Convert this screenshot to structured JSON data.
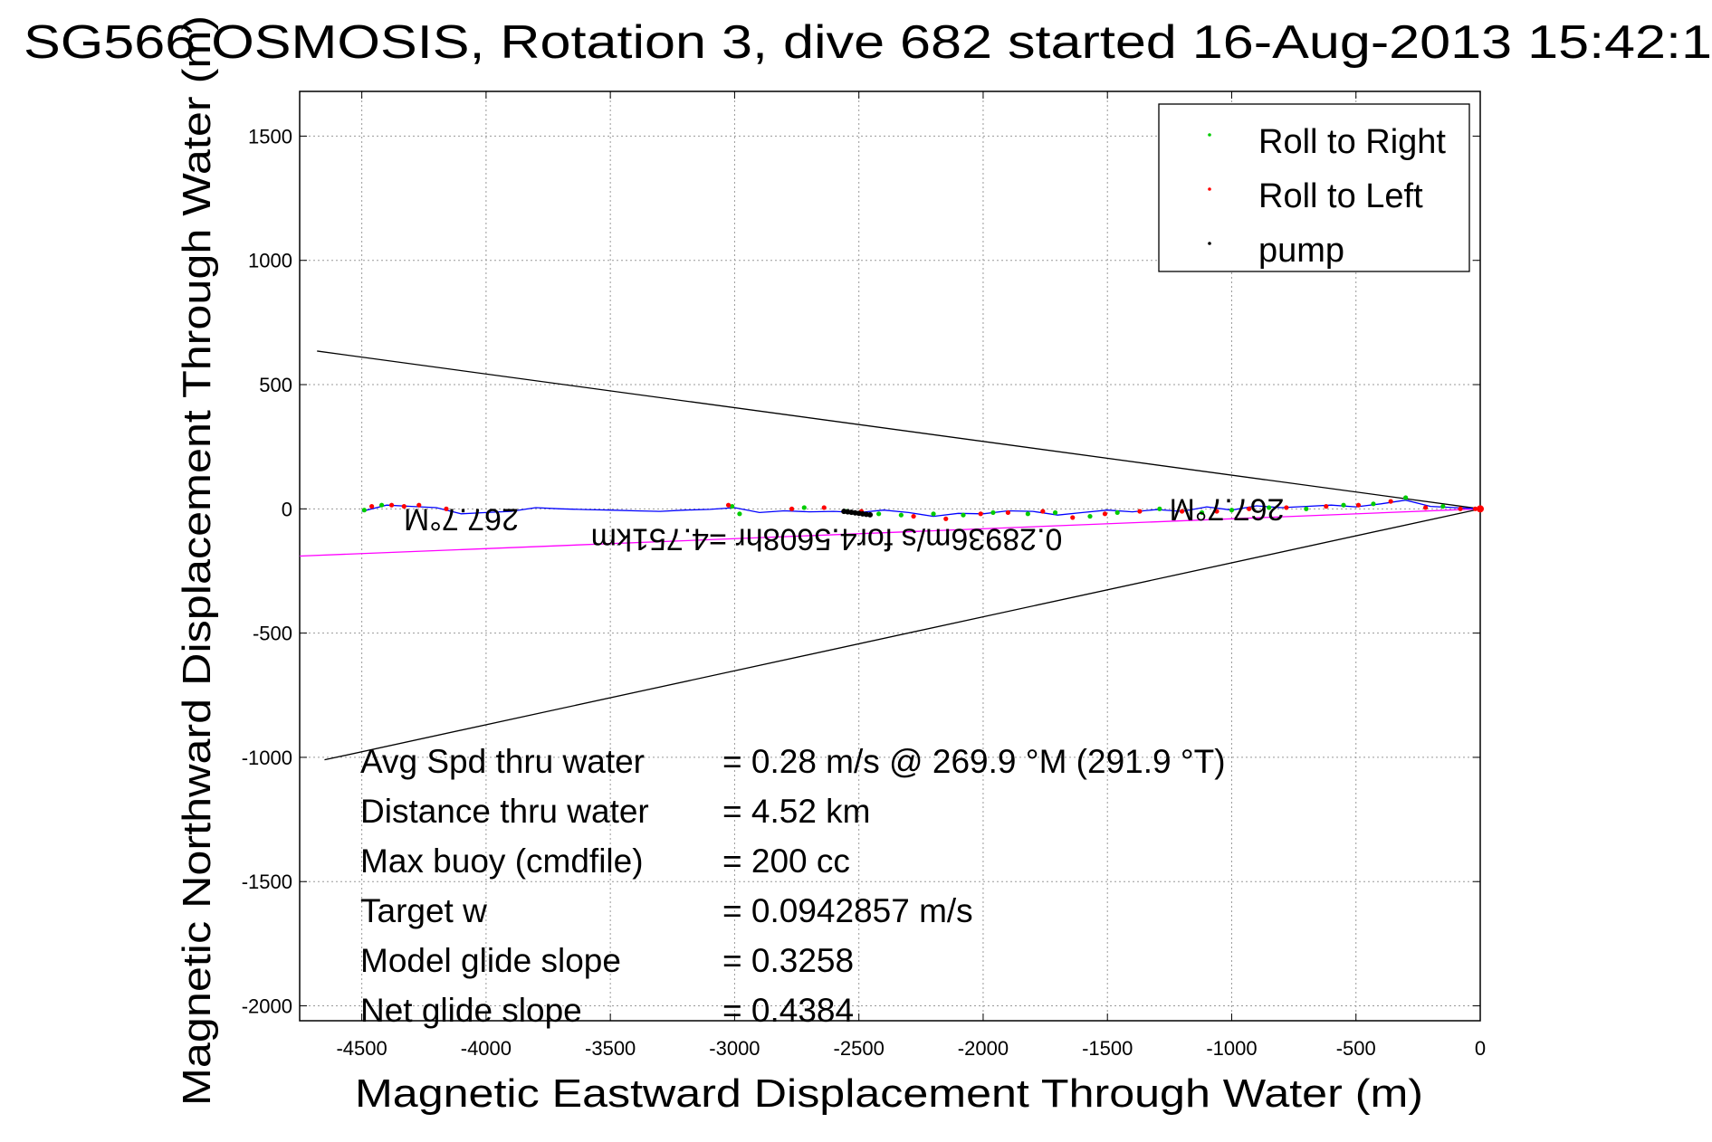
{
  "chart_data": {
    "type": "line",
    "title": "SG566 OSMOSIS, Rotation 3, dive 682 started 16-Aug-2013 15:42:1",
    "xlabel": "Magnetic Eastward Displacement Through Water (m)",
    "ylabel": "Magnetic Northward Displacement Through Water (m)",
    "xlim": [
      -4750,
      0
    ],
    "ylim": [
      -2060,
      1680
    ],
    "xticks": [
      -4500,
      -4000,
      -3500,
      -3000,
      -2500,
      -2000,
      -1500,
      -1000,
      -500,
      0
    ],
    "yticks": [
      1500,
      1000,
      500,
      0,
      -500,
      -1000,
      -1500,
      -2000
    ],
    "xtick_labels": [
      "-4500",
      "-4000",
      "-3500",
      "-3000",
      "-2500",
      "-2000",
      "-1500",
      "-1000",
      "-500",
      "0"
    ],
    "ytick_labels": [
      "1500",
      "1000",
      "500",
      "0",
      "-500",
      "-1000",
      "-1500",
      "-2000"
    ],
    "grid": true,
    "legend_position": "top-right",
    "legend": [
      {
        "label": "Roll to Right",
        "color": "#00cc00"
      },
      {
        "label": "Roll to Left",
        "color": "#ff0000"
      },
      {
        "label": "pump",
        "color": "#000000"
      }
    ],
    "track": {
      "name": "displacement",
      "color": "#0000ff",
      "x": [
        0,
        -100,
        -200,
        -300,
        -400,
        -500,
        -600,
        -700,
        -800,
        -900,
        -1000,
        -1100,
        -1200,
        -1300,
        -1400,
        -1500,
        -1600,
        -1700,
        -1800,
        -1900,
        -2000,
        -2100,
        -2200,
        -2300,
        -2400,
        -2500,
        -2600,
        -2700,
        -2800,
        -2900,
        -3000,
        -3100,
        -3200,
        -3300,
        -3400,
        -3500,
        -3600,
        -3700,
        -3800,
        -3900,
        -4000,
        -4100,
        -4200,
        -4300,
        -4400,
        -4500
      ],
      "y": [
        0,
        5,
        10,
        35,
        20,
        8,
        15,
        10,
        5,
        12,
        -5,
        8,
        -10,
        -3,
        -12,
        -5,
        -15,
        -25,
        -10,
        -8,
        -20,
        -18,
        -30,
        -15,
        -5,
        -15,
        -10,
        -12,
        -8,
        -15,
        5,
        -2,
        -5,
        -10,
        -8,
        -5,
        -3,
        0,
        5,
        -10,
        -15,
        -20,
        5,
        10,
        15,
        -10
      ]
    },
    "roll_right_points": {
      "x": [
        -4490,
        -4420,
        -3010,
        -2980,
        -2720,
        -2550,
        -2420,
        -2330,
        -2200,
        -2080,
        -1960,
        -1820,
        -1710,
        -1570,
        -1460,
        -1290,
        -1120,
        -1000,
        -850,
        -700,
        -550,
        -430,
        -300,
        -150
      ],
      "y": [
        -5,
        15,
        10,
        -20,
        5,
        -10,
        -20,
        -25,
        -20,
        -25,
        -15,
        -20,
        -15,
        -30,
        -15,
        0,
        -15,
        -5,
        5,
        0,
        15,
        20,
        45,
        10
      ]
    },
    "roll_left_points": {
      "x": [
        -4460,
        -4380,
        -4330,
        -4270,
        -4160,
        -3025,
        -2770,
        -2640,
        -2490,
        -2280,
        -2150,
        -2010,
        -1900,
        -1760,
        -1640,
        -1510,
        -1370,
        -1200,
        -1060,
        -930,
        -780,
        -620,
        -490,
        -360,
        -220,
        -80,
        -20
      ],
      "y": [
        10,
        15,
        10,
        15,
        0,
        15,
        0,
        5,
        -10,
        -30,
        -40,
        -20,
        -15,
        -10,
        -35,
        -20,
        -10,
        -10,
        -10,
        0,
        5,
        10,
        15,
        30,
        5,
        0,
        0
      ]
    },
    "pump_points": {
      "x": [
        -2560,
        -2545,
        -2530,
        -2515,
        -2500,
        -2485,
        -2470,
        -2455
      ],
      "y": [
        -10,
        -12,
        -14,
        -16,
        -18,
        -20,
        -22,
        -24
      ]
    },
    "current_line": {
      "color": "#ff00ff",
      "x": [
        0,
        -4750
      ],
      "y": [
        0,
        -190
      ]
    },
    "cone_upper": {
      "color": "#000000",
      "x": [
        0,
        -4680
      ],
      "y": [
        0,
        635
      ]
    },
    "cone_lower": {
      "color": "#000000",
      "x": [
        0,
        -4650
      ],
      "y": [
        0,
        -1010
      ]
    },
    "annotations": [
      {
        "text": "267.7°M",
        "x": -4100,
        "y": 0,
        "rotation": 180
      },
      {
        "text": "267.7°M",
        "x": -1020,
        "y": 40,
        "rotation": 180
      },
      {
        "text": "0.28936m/s for4.5608hr =4.751km",
        "x": -2630,
        "y": -80,
        "rotation": 180
      }
    ],
    "stats": [
      {
        "label": "Avg Spd thru water",
        "value": "=  0.28 m/s @ 269.9 °M (291.9 °T)"
      },
      {
        "label": "Distance thru water",
        "value": "=  4.52 km"
      },
      {
        "label": "Max buoy (cmdfile)",
        "value": "= 200 cc"
      },
      {
        "label": "Target w",
        "value": "= 0.0942857 m/s"
      },
      {
        "label": "Model glide slope",
        "value": "= 0.3258"
      },
      {
        "label": "Net glide slope",
        "value": "= 0.4384"
      }
    ]
  }
}
